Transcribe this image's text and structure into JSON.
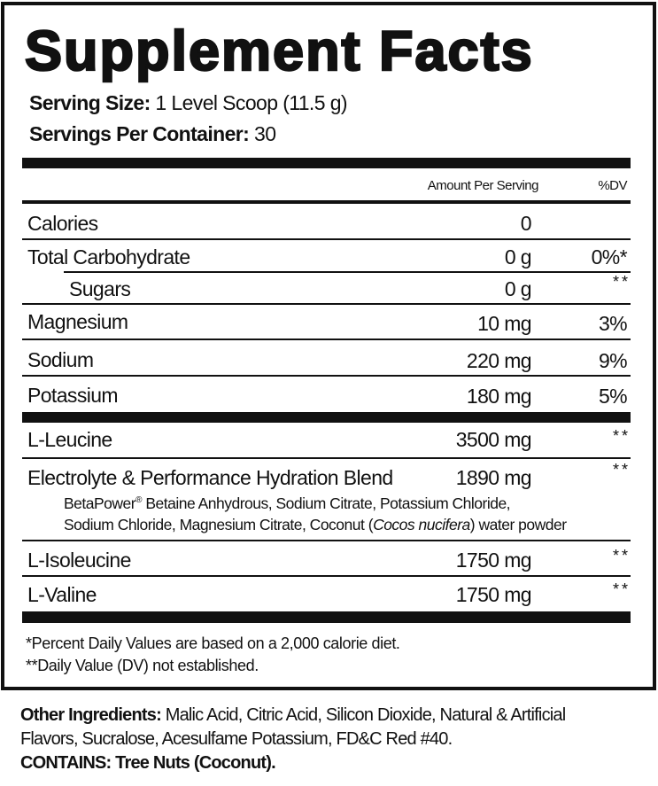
{
  "title": "Supplement Facts",
  "serving_size": {
    "label": "Serving Size:",
    "value": " 1 Level Scoop (11.5 g)"
  },
  "servings_per_container": {
    "label": "Servings Per Container:",
    "value": " 30"
  },
  "header": {
    "amount": "Amount Per Serving",
    "dv": "%DV"
  },
  "rows": [
    {
      "name": "Calories",
      "amount": "0",
      "dv": ""
    },
    {
      "name": "Total Carbohydrate",
      "amount": "0 g",
      "dv": "0%*"
    },
    {
      "name": "Sugars",
      "amount": "0 g",
      "dv": "**"
    },
    {
      "name": "Magnesium",
      "amount": "10 mg",
      "dv": "3%"
    },
    {
      "name": "Sodium",
      "amount": "220 mg",
      "dv": "9%"
    },
    {
      "name": "Potassium",
      "amount": "180 mg",
      "dv": "5%"
    },
    {
      "name": "L-Leucine",
      "amount": "3500 mg",
      "dv": "**"
    },
    {
      "name": "Electrolyte & Performance Hydration Blend",
      "amount": "1890 mg",
      "dv": "**"
    },
    {
      "name": "L-Isoleucine",
      "amount": "1750 mg",
      "dv": "**"
    },
    {
      "name": "L-Valine",
      "amount": "1750 mg",
      "dv": "**"
    }
  ],
  "blend_line1": {
    "a": "BetaPower",
    "reg": "®",
    "b": " Betaine Anhydrous, Sodium Citrate, Potassium Chloride,"
  },
  "blend_line2": {
    "a": "Sodium Chloride, Magnesium Citrate, Coconut (",
    "italic": "Cocos nucifera",
    "b": ") water powder"
  },
  "footnotes": [
    "*Percent Daily Values are based on a 2,000 calorie diet.",
    "**Daily Value (DV) not established."
  ],
  "other": {
    "label": "Other Ingredients:",
    "line1": " Malic Acid, Citric Acid, Silicon Dioxide, Natural & Artificial",
    "line2": "Flavors, Sucralose, Acesulfame Potassium, FD&C Red #40."
  },
  "contains": {
    "label": "CONTAINS:",
    "value": " Tree Nuts (Coconut)."
  }
}
